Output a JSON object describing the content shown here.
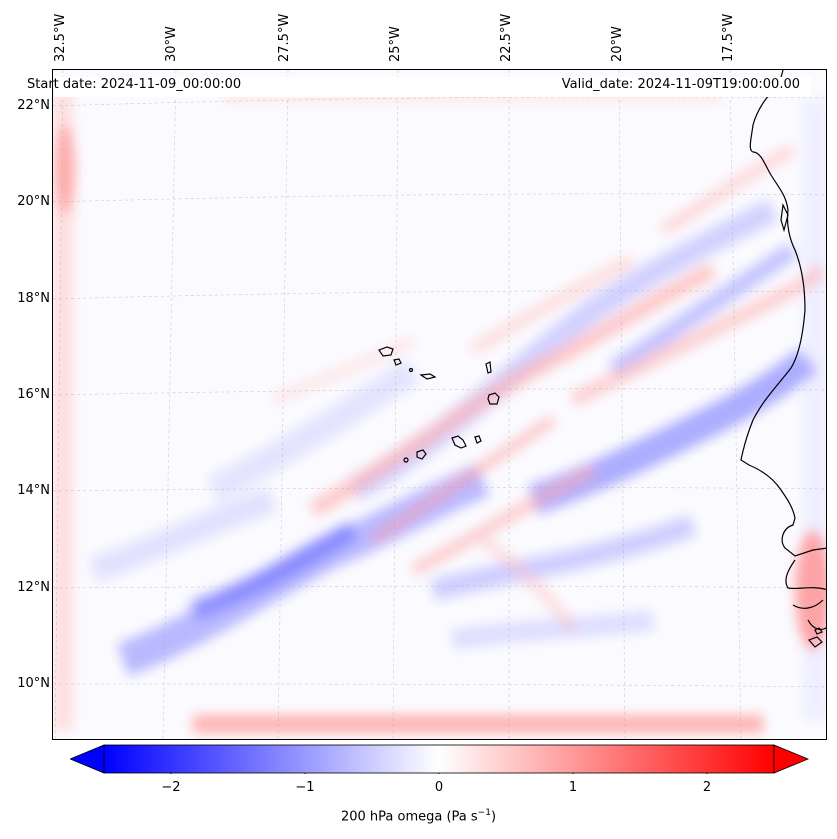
{
  "map": {
    "start_date": "Start date: 2024-11-09_00:00:00",
    "valid_date": "Valid_date: 2024-11-09T19:00:00.00",
    "lon_labels": [
      "32.5°W",
      "30°W",
      "27.5°W",
      "25°W",
      "22.5°W",
      "20°W",
      "17.5°W"
    ],
    "lat_labels": [
      "22°N",
      "20°N",
      "18°N",
      "16°N",
      "14°N",
      "12°N",
      "10°N"
    ],
    "gridlines": true,
    "features": [
      "cape-verde-islands",
      "west-africa-coastline"
    ]
  },
  "colorbar": {
    "label": "200 hPa omega (Pa s",
    "label_sup": "−1",
    "label_close": ")",
    "ticks": [
      "−2",
      "−1",
      "0",
      "1",
      "2"
    ],
    "tick_values": [
      -2,
      -1,
      0,
      1,
      2
    ],
    "range": [
      -2.6,
      2.6
    ],
    "colormap": "bwr",
    "extend": "both",
    "colors": {
      "negative": "#0000ff",
      "zero": "#ffffff",
      "positive": "#ff0000"
    }
  }
}
